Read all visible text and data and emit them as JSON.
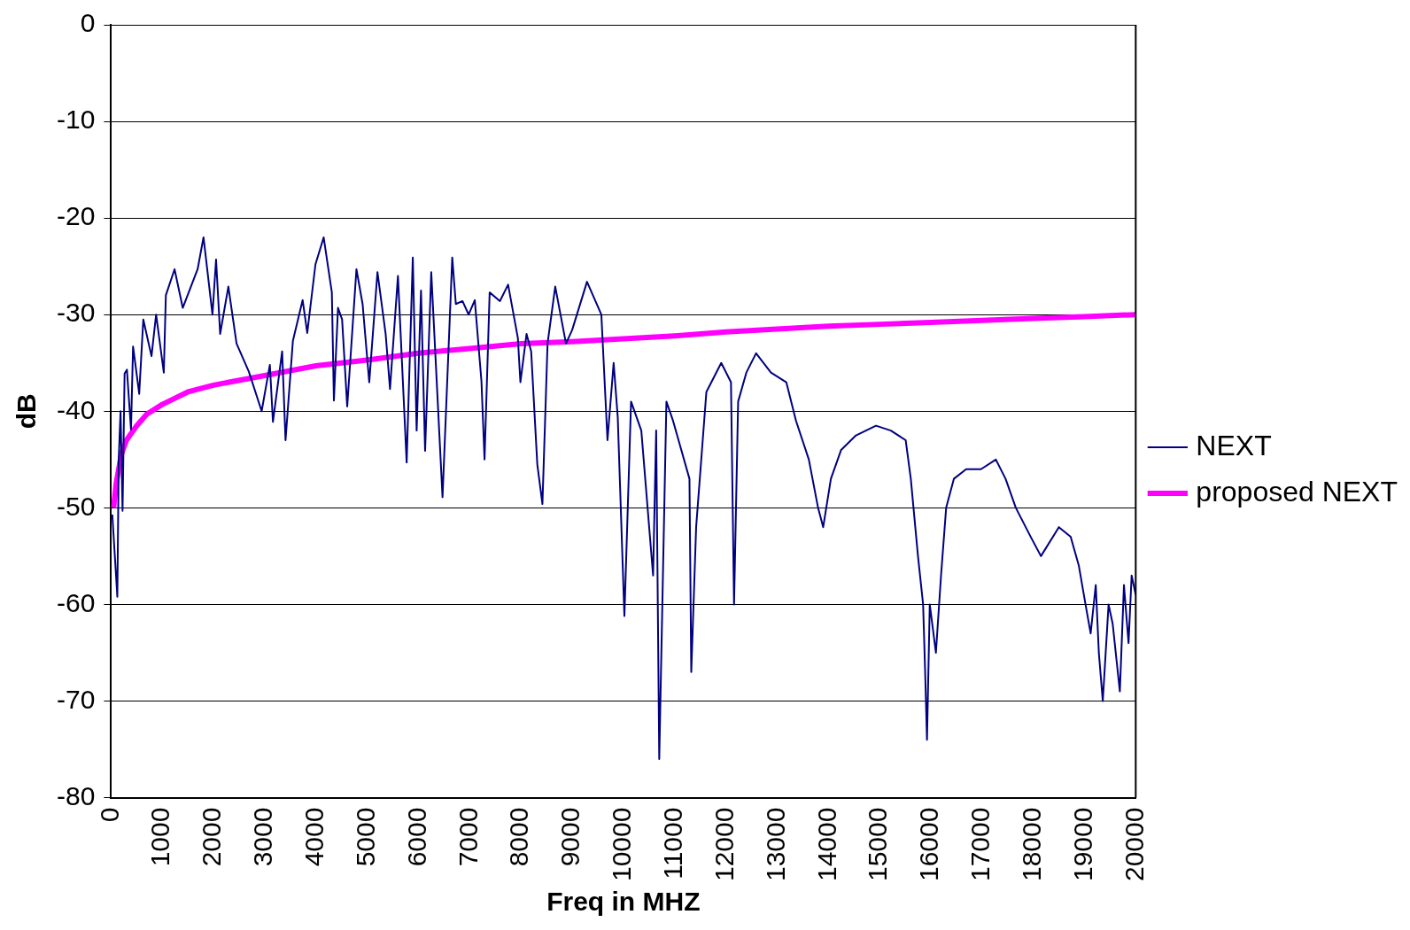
{
  "chart_data": {
    "type": "line",
    "xlabel": "Freq in MHZ",
    "ylabel": "dB",
    "xlim": [
      0,
      20000
    ],
    "xticks": [
      0,
      1000,
      2000,
      3000,
      4000,
      5000,
      6000,
      7000,
      8000,
      9000,
      10000,
      11000,
      12000,
      13000,
      14000,
      15000,
      16000,
      17000,
      18000,
      19000,
      20000
    ],
    "ylim": [
      -80,
      0
    ],
    "yticks": [
      -80,
      -70,
      -60,
      -50,
      -40,
      -30,
      -20,
      -10,
      0
    ],
    "grid": "y",
    "legend": "right",
    "series": [
      {
        "name": "NEXT",
        "color": "#000080",
        "x": [
          25,
          123,
          150,
          186,
          225,
          265,
          310,
          390,
          430,
          550,
          630,
          790,
          880,
          1030,
          1070,
          1240,
          1400,
          1690,
          1805,
          1980,
          2050,
          2130,
          2290,
          2450,
          2690,
          2940,
          3100,
          3160,
          3340,
          3406,
          3550,
          3740,
          3830,
          3990,
          4150,
          4310,
          4350,
          4430,
          4510,
          4610,
          4790,
          4910,
          5040,
          5200,
          5360,
          5445,
          5600,
          5770,
          5890,
          5965,
          6050,
          6130,
          6250,
          6470,
          6660,
          6730,
          6860,
          6980,
          7100,
          7230,
          7290,
          7390,
          7590,
          7750,
          7940,
          7990,
          8110,
          8200,
          8320,
          8420,
          8520,
          8670,
          8880,
          9000,
          9290,
          9570,
          9690,
          9810,
          9890,
          10020,
          10150,
          10350,
          10580,
          10640,
          10700,
          10840,
          10970,
          11290,
          11325,
          11420,
          11620,
          11910,
          12100,
          12160,
          12240,
          12400,
          12590,
          12880,
          13180,
          13370,
          13620,
          13800,
          13900,
          14050,
          14250,
          14540,
          14930,
          15220,
          15510,
          15610,
          15750,
          15850,
          15890,
          15926,
          15980,
          16100,
          16200,
          16300,
          16450,
          16690,
          16980,
          17270,
          17460,
          17660,
          17950,
          18150,
          18500,
          18730,
          18890,
          19020,
          19120,
          19220,
          19280,
          19357,
          19470,
          19550,
          19690,
          19770,
          19860,
          19920,
          20000
        ],
        "values": [
          -50.7,
          -59.2,
          -45,
          -40,
          -50.3,
          -36.1,
          -35.7,
          -41.9,
          -33.3,
          -38.2,
          -30.5,
          -34.3,
          -30,
          -36,
          -28,
          -25.3,
          -29.3,
          -25.3,
          -22,
          -30,
          -24.3,
          -32,
          -27.1,
          -33,
          -35.9,
          -40,
          -35.2,
          -41.1,
          -33.8,
          -43,
          -32.7,
          -28.5,
          -31.9,
          -24.8,
          -22,
          -27.7,
          -38.9,
          -29.3,
          -30.5,
          -39.5,
          -25.3,
          -28.9,
          -37,
          -25.6,
          -32,
          -37.7,
          -26,
          -45.3,
          -24.1,
          -42,
          -27.5,
          -44.1,
          -25.6,
          -48.9,
          -24.1,
          -28.9,
          -28.6,
          -30,
          -28.5,
          -36.9,
          -45,
          -27.7,
          -28.6,
          -26.9,
          -32.4,
          -37,
          -32,
          -33.8,
          -45.5,
          -49.6,
          -33,
          -27.1,
          -33,
          -31.6,
          -26.6,
          -30,
          -43,
          -35,
          -40.6,
          -61.2,
          -39,
          -42,
          -57,
          -42,
          -76,
          -39,
          -41,
          -47,
          -67,
          -52,
          -38,
          -35,
          -37,
          -60,
          -39,
          -36,
          -34,
          -36,
          -37,
          -41,
          -45,
          -50,
          -52,
          -47,
          -44,
          -42.5,
          -41.5,
          -42,
          -43,
          -47,
          -55,
          -60,
          -67,
          -74,
          -60,
          -65,
          -57,
          -50,
          -47,
          -46,
          -46,
          -45,
          -47,
          -50,
          -53,
          -55,
          -52,
          -53,
          -56,
          -60,
          -63,
          -58,
          -65,
          -70,
          -60,
          -62,
          -69,
          -58,
          -64,
          -57,
          -59
        ]
      },
      {
        "name": "proposed NEXT",
        "color": "#ff00ff",
        "x": [
          50,
          100,
          200,
          300,
          500,
          700,
          1000,
          1500,
          2000,
          3000,
          4000,
          5000,
          6000,
          7000,
          8000,
          9000,
          10000,
          11000,
          12000,
          13000,
          14000,
          15000,
          16000,
          17000,
          18000,
          19000,
          20000
        ],
        "values": [
          -50,
          -47.5,
          -44.5,
          -43,
          -41.5,
          -40.3,
          -39.3,
          -38,
          -37.3,
          -36.3,
          -35.3,
          -34.7,
          -34,
          -33.5,
          -33,
          -32.8,
          -32.5,
          -32.2,
          -31.8,
          -31.5,
          -31.2,
          -31,
          -30.8,
          -30.6,
          -30.4,
          -30.2,
          -30
        ]
      }
    ]
  }
}
